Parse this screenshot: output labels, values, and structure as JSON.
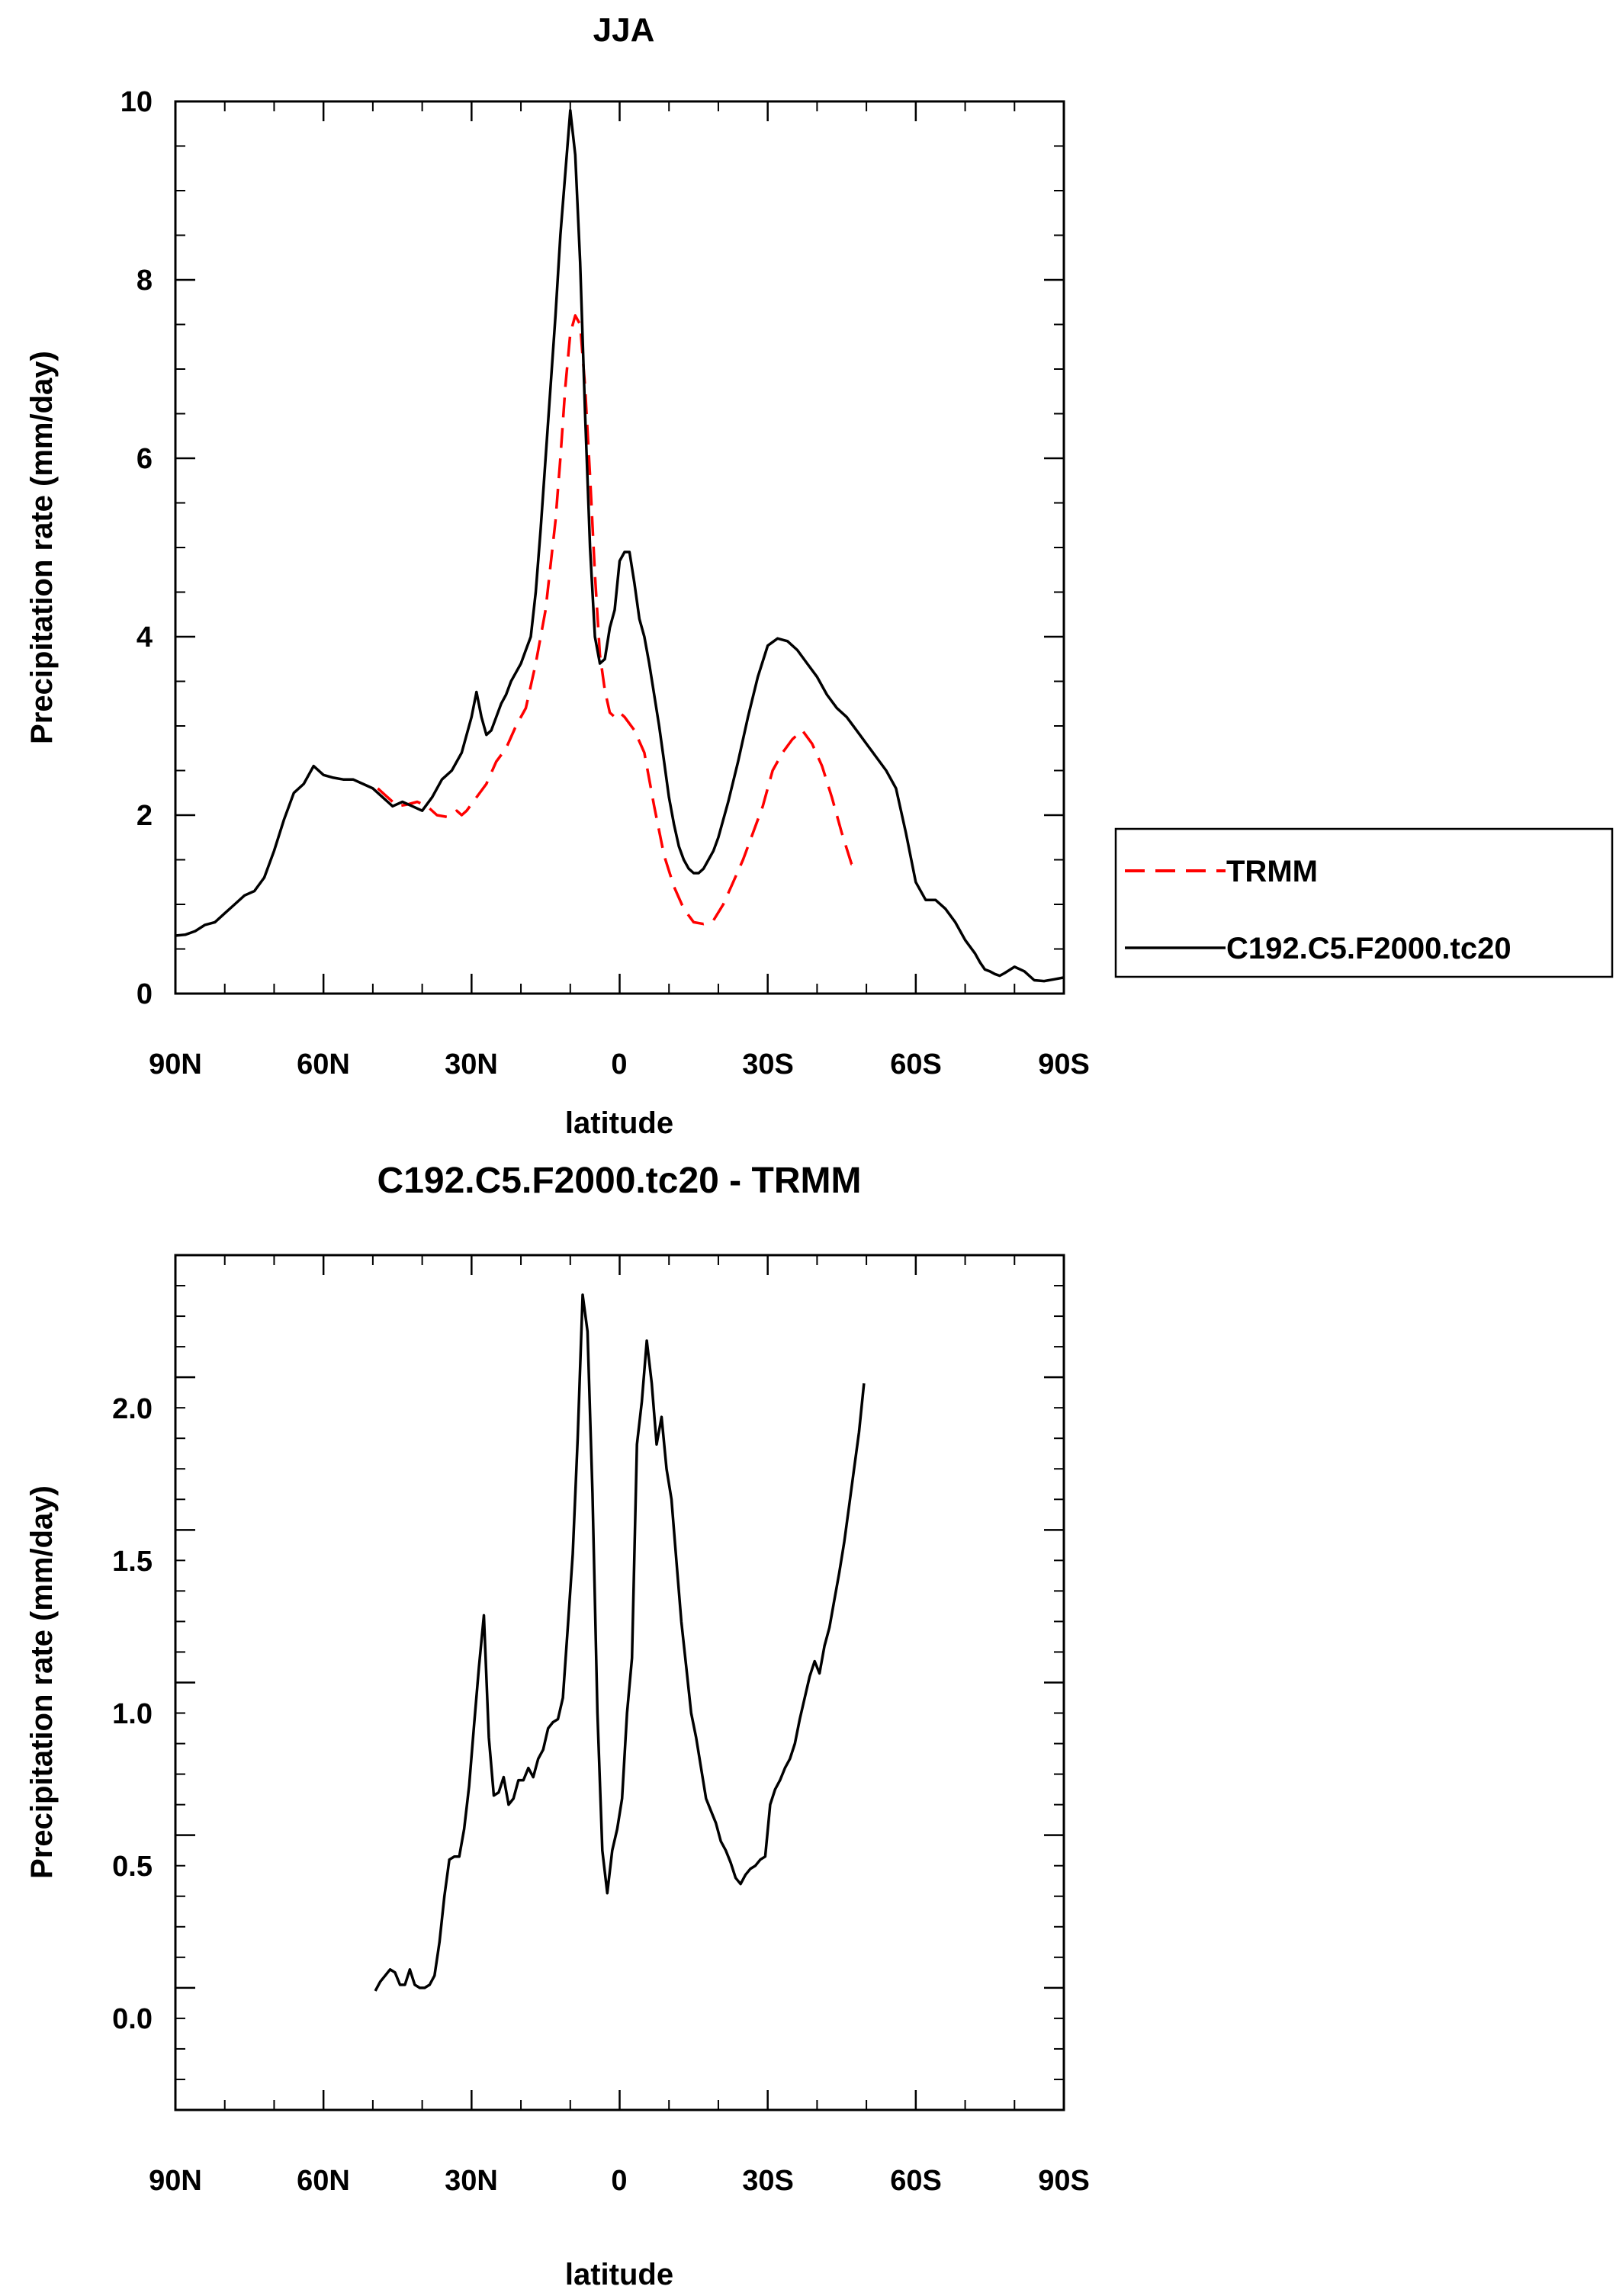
{
  "chart_data": [
    {
      "type": "line",
      "title": "JJA",
      "xlabel": "latitude",
      "ylabel": "Precipitation rate (mm/day)",
      "xlim": [
        90,
        -90
      ],
      "ylim": [
        0,
        10
      ],
      "x_ticks": [
        90,
        60,
        30,
        0,
        -30,
        -60,
        -90
      ],
      "x_tick_labels": [
        "90N",
        "60N",
        "30N",
        "0",
        "30S",
        "60S",
        "90S"
      ],
      "y_ticks": [
        0,
        2,
        4,
        6,
        8,
        10
      ],
      "y_tick_labels": [
        "0",
        "2",
        "4",
        "6",
        "8",
        "10"
      ],
      "legend": {
        "position": "right",
        "entries": [
          {
            "label": "TRMM",
            "color": "#ff0000",
            "dash": "dashed"
          },
          {
            "label": "C192.C5.F2000.tc20",
            "color": "#000000",
            "dash": "solid"
          }
        ]
      },
      "series": [
        {
          "name": "TRMM",
          "color": "#ff0000",
          "style": "dashed",
          "x": [
            49,
            47,
            45,
            43,
            41,
            39,
            37,
            35,
            33,
            32,
            31,
            29,
            27,
            25,
            23,
            21,
            19,
            17,
            15,
            13,
            12,
            11,
            10,
            9,
            8,
            7,
            6,
            5,
            4,
            3,
            2,
            1,
            0,
            -1,
            -3,
            -5,
            -7,
            -9,
            -11,
            -13,
            -15,
            -17,
            -19,
            -21,
            -23,
            -25,
            -27,
            -29,
            -31,
            -33,
            -35,
            -37,
            -39,
            -41,
            -43,
            -45,
            -47,
            -49
          ],
          "values": [
            2.3,
            2.2,
            2.1,
            2.12,
            2.15,
            2.1,
            2.0,
            1.98,
            2.05,
            2.0,
            2.05,
            2.2,
            2.35,
            2.6,
            2.75,
            3.0,
            3.2,
            3.7,
            4.3,
            5.3,
            6.0,
            6.8,
            7.4,
            7.6,
            7.5,
            6.8,
            5.8,
            4.7,
            3.8,
            3.4,
            3.15,
            3.1,
            3.15,
            3.1,
            2.95,
            2.7,
            2.1,
            1.55,
            1.2,
            0.95,
            0.8,
            0.78,
            0.82,
            1.0,
            1.25,
            1.5,
            1.8,
            2.1,
            2.5,
            2.7,
            2.85,
            2.95,
            2.8,
            2.55,
            2.2,
            1.8,
            1.45,
            1.45
          ]
        },
        {
          "name": "C192.C5.F2000.tc20",
          "color": "#000000",
          "style": "solid",
          "x": [
            90,
            88,
            86,
            84,
            82,
            80,
            78,
            76,
            74,
            72,
            70,
            68,
            66,
            64,
            62,
            60,
            58,
            56,
            54,
            52,
            50,
            48,
            46,
            44,
            42,
            40,
            38,
            36,
            34,
            32,
            30,
            29,
            28,
            27,
            26,
            25,
            24,
            23,
            22,
            21,
            20,
            19,
            18,
            17,
            16,
            15,
            14,
            13,
            12,
            11,
            10,
            9,
            8,
            7,
            6,
            5,
            4,
            3,
            2,
            1,
            0,
            -1,
            -2,
            -3,
            -4,
            -5,
            -6,
            -7,
            -8,
            -9,
            -10,
            -11,
            -12,
            -13,
            -14,
            -15,
            -16,
            -17,
            -18,
            -19,
            -20,
            -22,
            -24,
            -26,
            -28,
            -30,
            -32,
            -34,
            -36,
            -38,
            -40,
            -42,
            -44,
            -46,
            -48,
            -50,
            -52,
            -54,
            -56,
            -58,
            -60,
            -62,
            -64,
            -66,
            -68,
            -70,
            -72,
            -73,
            -74,
            -75,
            -76,
            -77,
            -78,
            -80,
            -82,
            -84,
            -86,
            -88,
            -90
          ],
          "values": [
            0.65,
            0.66,
            0.7,
            0.77,
            0.8,
            0.9,
            1.0,
            1.1,
            1.15,
            1.3,
            1.6,
            1.95,
            2.25,
            2.35,
            2.55,
            2.45,
            2.42,
            2.4,
            2.4,
            2.35,
            2.3,
            2.2,
            2.1,
            2.15,
            2.1,
            2.05,
            2.2,
            2.4,
            2.5,
            2.7,
            3.1,
            3.38,
            3.1,
            2.9,
            2.95,
            3.1,
            3.25,
            3.35,
            3.5,
            3.6,
            3.7,
            3.85,
            4.0,
            4.5,
            5.2,
            6.0,
            6.8,
            7.6,
            8.5,
            9.2,
            9.9,
            9.4,
            8.2,
            6.5,
            5.0,
            4.0,
            3.7,
            3.75,
            4.1,
            4.3,
            4.85,
            4.95,
            4.95,
            4.6,
            4.2,
            4.0,
            3.7,
            3.35,
            3.0,
            2.6,
            2.2,
            1.9,
            1.65,
            1.5,
            1.4,
            1.35,
            1.35,
            1.4,
            1.5,
            1.6,
            1.75,
            2.15,
            2.6,
            3.1,
            3.55,
            3.9,
            3.98,
            3.95,
            3.85,
            3.7,
            3.55,
            3.35,
            3.2,
            3.1,
            2.95,
            2.8,
            2.65,
            2.5,
            2.3,
            1.8,
            1.25,
            1.05,
            1.05,
            0.95,
            0.8,
            0.6,
            0.45,
            0.35,
            0.27,
            0.25,
            0.22,
            0.2,
            0.23,
            0.3,
            0.25,
            0.15,
            0.14,
            0.16,
            0.18
          ]
        }
      ]
    },
    {
      "type": "line",
      "title": "C192.C5.F2000.tc20 - TRMM",
      "xlabel": "latitude",
      "ylabel": "Precipitation rate (mm/day)",
      "xlim": [
        90,
        -90
      ],
      "ylim": [
        -0.4,
        2.4
      ],
      "x_ticks": [
        90,
        60,
        30,
        0,
        -30,
        -60,
        -90
      ],
      "x_tick_labels": [
        "90N",
        "60N",
        "30N",
        "0",
        "30S",
        "60S",
        "90S"
      ],
      "y_ticks": [
        0.0,
        0.5,
        1.0,
        1.5,
        2.0
      ],
      "y_tick_labels": [
        "0.0",
        "0.5",
        "1.0",
        "1.5",
        "2.0"
      ],
      "series": [
        {
          "name": "C192.C5.F2000.tc20 - TRMM",
          "color": "#000000",
          "style": "solid",
          "x": [
            49.5,
            48.5,
            47.5,
            46.5,
            45.5,
            44.5,
            43.5,
            42.5,
            41.5,
            40.5,
            39.5,
            38.5,
            37.5,
            36.5,
            35.5,
            34.5,
            33.5,
            32.5,
            31.5,
            30.5,
            29.5,
            28.5,
            27.5,
            26.5,
            25.5,
            24.5,
            23.5,
            22.5,
            21.5,
            20.5,
            19.5,
            18.5,
            17.5,
            16.5,
            15.5,
            14.5,
            13.5,
            12.5,
            11.5,
            10.5,
            9.5,
            8.5,
            7.5,
            6.5,
            5.5,
            4.5,
            3.5,
            2.5,
            1.5,
            0.5,
            -0.5,
            -1.5,
            -2.5,
            -3.5,
            -4.5,
            -5.5,
            -6.5,
            -7.5,
            -8.5,
            -9.5,
            -10.5,
            -11.5,
            -12.5,
            -13.5,
            -14.5,
            -15.5,
            -16.5,
            -17.5,
            -18.5,
            -19.5,
            -20.5,
            -21.5,
            -22.5,
            -23.5,
            -24.5,
            -25.5,
            -26.5,
            -27.5,
            -28.5,
            -29.5,
            -30.5,
            -31.5,
            -32.5,
            -33.5,
            -34.5,
            -35.5,
            -36.5,
            -37.5,
            -38.5,
            -39.5,
            -40.5,
            -41.5,
            -42.5,
            -43.5,
            -44.5,
            -45.5,
            -46.5,
            -47.5,
            -48.5,
            -49.5
          ],
          "values": [
            -0.01,
            0.02,
            0.04,
            0.06,
            0.05,
            0.01,
            0.01,
            0.06,
            0.01,
            0.0,
            0.0,
            0.01,
            0.04,
            0.15,
            0.3,
            0.42,
            0.43,
            0.43,
            0.52,
            0.66,
            0.86,
            1.05,
            1.22,
            0.82,
            0.63,
            0.64,
            0.69,
            0.6,
            0.62,
            0.68,
            0.68,
            0.72,
            0.69,
            0.75,
            0.78,
            0.85,
            0.87,
            0.88,
            0.95,
            1.18,
            1.42,
            1.8,
            2.27,
            2.15,
            1.62,
            0.9,
            0.45,
            0.31,
            0.45,
            0.52,
            0.62,
            0.9,
            1.08,
            1.78,
            1.92,
            2.12,
            1.98,
            1.78,
            1.87,
            1.7,
            1.6,
            1.4,
            1.2,
            1.05,
            0.9,
            0.82,
            0.72,
            0.62,
            0.58,
            0.54,
            0.48,
            0.45,
            0.41,
            0.36,
            0.34,
            0.37,
            0.39,
            0.4,
            0.42,
            0.43,
            0.6,
            0.65,
            0.68,
            0.72,
            0.75,
            0.8,
            0.88,
            0.95,
            1.02,
            1.07,
            1.03,
            1.12,
            1.18,
            1.27,
            1.36,
            1.46,
            1.58,
            1.7,
            1.82,
            1.98
          ]
        }
      ]
    }
  ]
}
